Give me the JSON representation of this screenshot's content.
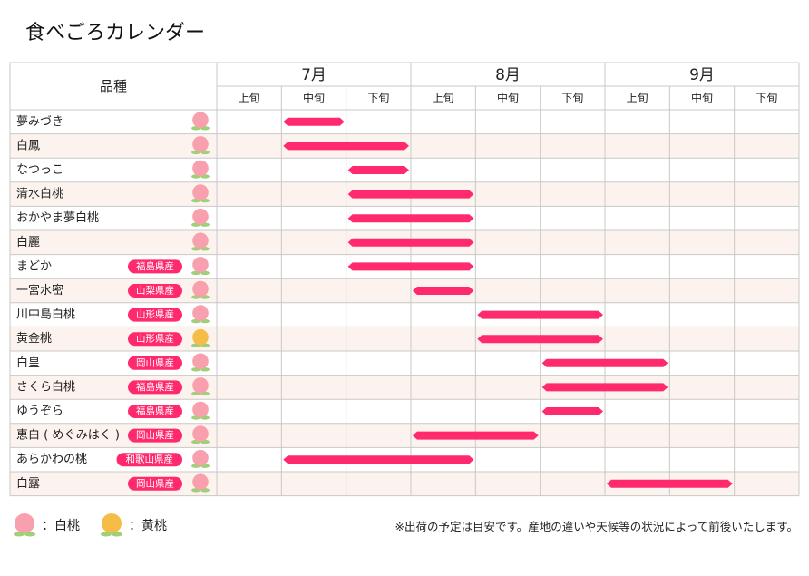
{
  "title": "食べごろカレンダー",
  "colors": {
    "bar": "#ff2a6d",
    "row_alt": "#fdf3ee",
    "grid": "#c8c8c8",
    "peach_white": "#f8a0ae",
    "peach_yellow": "#f5bd45",
    "leaf": "#9fcf76",
    "pref_badge": "#ff2a6d"
  },
  "chart_data": {
    "type": "gantt",
    "title": "食べごろカレンダー",
    "header_label": "品種",
    "months": [
      "7月",
      "8月",
      "9月"
    ],
    "periods": [
      "上旬",
      "中旬",
      "下旬",
      "上旬",
      "中旬",
      "下旬",
      "上旬",
      "中旬",
      "下旬"
    ],
    "rows": [
      {
        "variety": "夢みづき",
        "prefecture": "",
        "peach": "白桃",
        "start": "7月中旬",
        "end": "7月中旬"
      },
      {
        "variety": "白鳳",
        "prefecture": "",
        "peach": "白桃",
        "start": "7月中旬",
        "end": "7月下旬"
      },
      {
        "variety": "なつっこ",
        "prefecture": "",
        "peach": "白桃",
        "start": "7月下旬",
        "end": "7月下旬"
      },
      {
        "variety": "清水白桃",
        "prefecture": "",
        "peach": "白桃",
        "start": "7月下旬",
        "end": "8月上旬"
      },
      {
        "variety": "おかやま夢白桃",
        "prefecture": "",
        "peach": "白桃",
        "start": "7月下旬",
        "end": "8月上旬"
      },
      {
        "variety": "白麗",
        "prefecture": "",
        "peach": "白桃",
        "start": "7月下旬",
        "end": "8月上旬"
      },
      {
        "variety": "まどか",
        "prefecture": "福島県産",
        "peach": "白桃",
        "start": "7月下旬",
        "end": "8月上旬"
      },
      {
        "variety": "一宮水密",
        "prefecture": "山梨県産",
        "peach": "白桃",
        "start": "8月上旬",
        "end": "8月上旬"
      },
      {
        "variety": "川中島白桃",
        "prefecture": "山形県産",
        "peach": "白桃",
        "start": "8月中旬",
        "end": "8月下旬"
      },
      {
        "variety": "黄金桃",
        "prefecture": "山形県産",
        "peach": "黄桃",
        "start": "8月中旬",
        "end": "8月下旬"
      },
      {
        "variety": "白皇",
        "prefecture": "岡山県産",
        "peach": "白桃",
        "start": "8月下旬",
        "end": "9月上旬"
      },
      {
        "variety": "さくら白桃",
        "prefecture": "福島県産",
        "peach": "白桃",
        "start": "8月下旬",
        "end": "9月上旬"
      },
      {
        "variety": "ゆうぞら",
        "prefecture": "福島県産",
        "peach": "白桃",
        "start": "8月下旬",
        "end": "8月下旬"
      },
      {
        "variety": "恵白 ( めぐみはく )",
        "prefecture": "岡山県産",
        "peach": "白桃",
        "start": "8月上旬",
        "end": "8月中旬"
      },
      {
        "variety": "あらかわの桃",
        "prefecture": "和歌山県産",
        "peach": "白桃",
        "start": "7月中旬",
        "end": "8月上旬"
      },
      {
        "variety": "白露",
        "prefecture": "岡山県産",
        "peach": "白桃",
        "start": "9月上旬",
        "end": "9月中旬"
      }
    ]
  },
  "legend": [
    {
      "icon": "white-peach-icon",
      "label": "：白桃"
    },
    {
      "icon": "yellow-peach-icon",
      "label": "：黄桃"
    }
  ],
  "note": "※出荷の予定は目安です。産地の違いや天候等の状況によって前後いたします。"
}
